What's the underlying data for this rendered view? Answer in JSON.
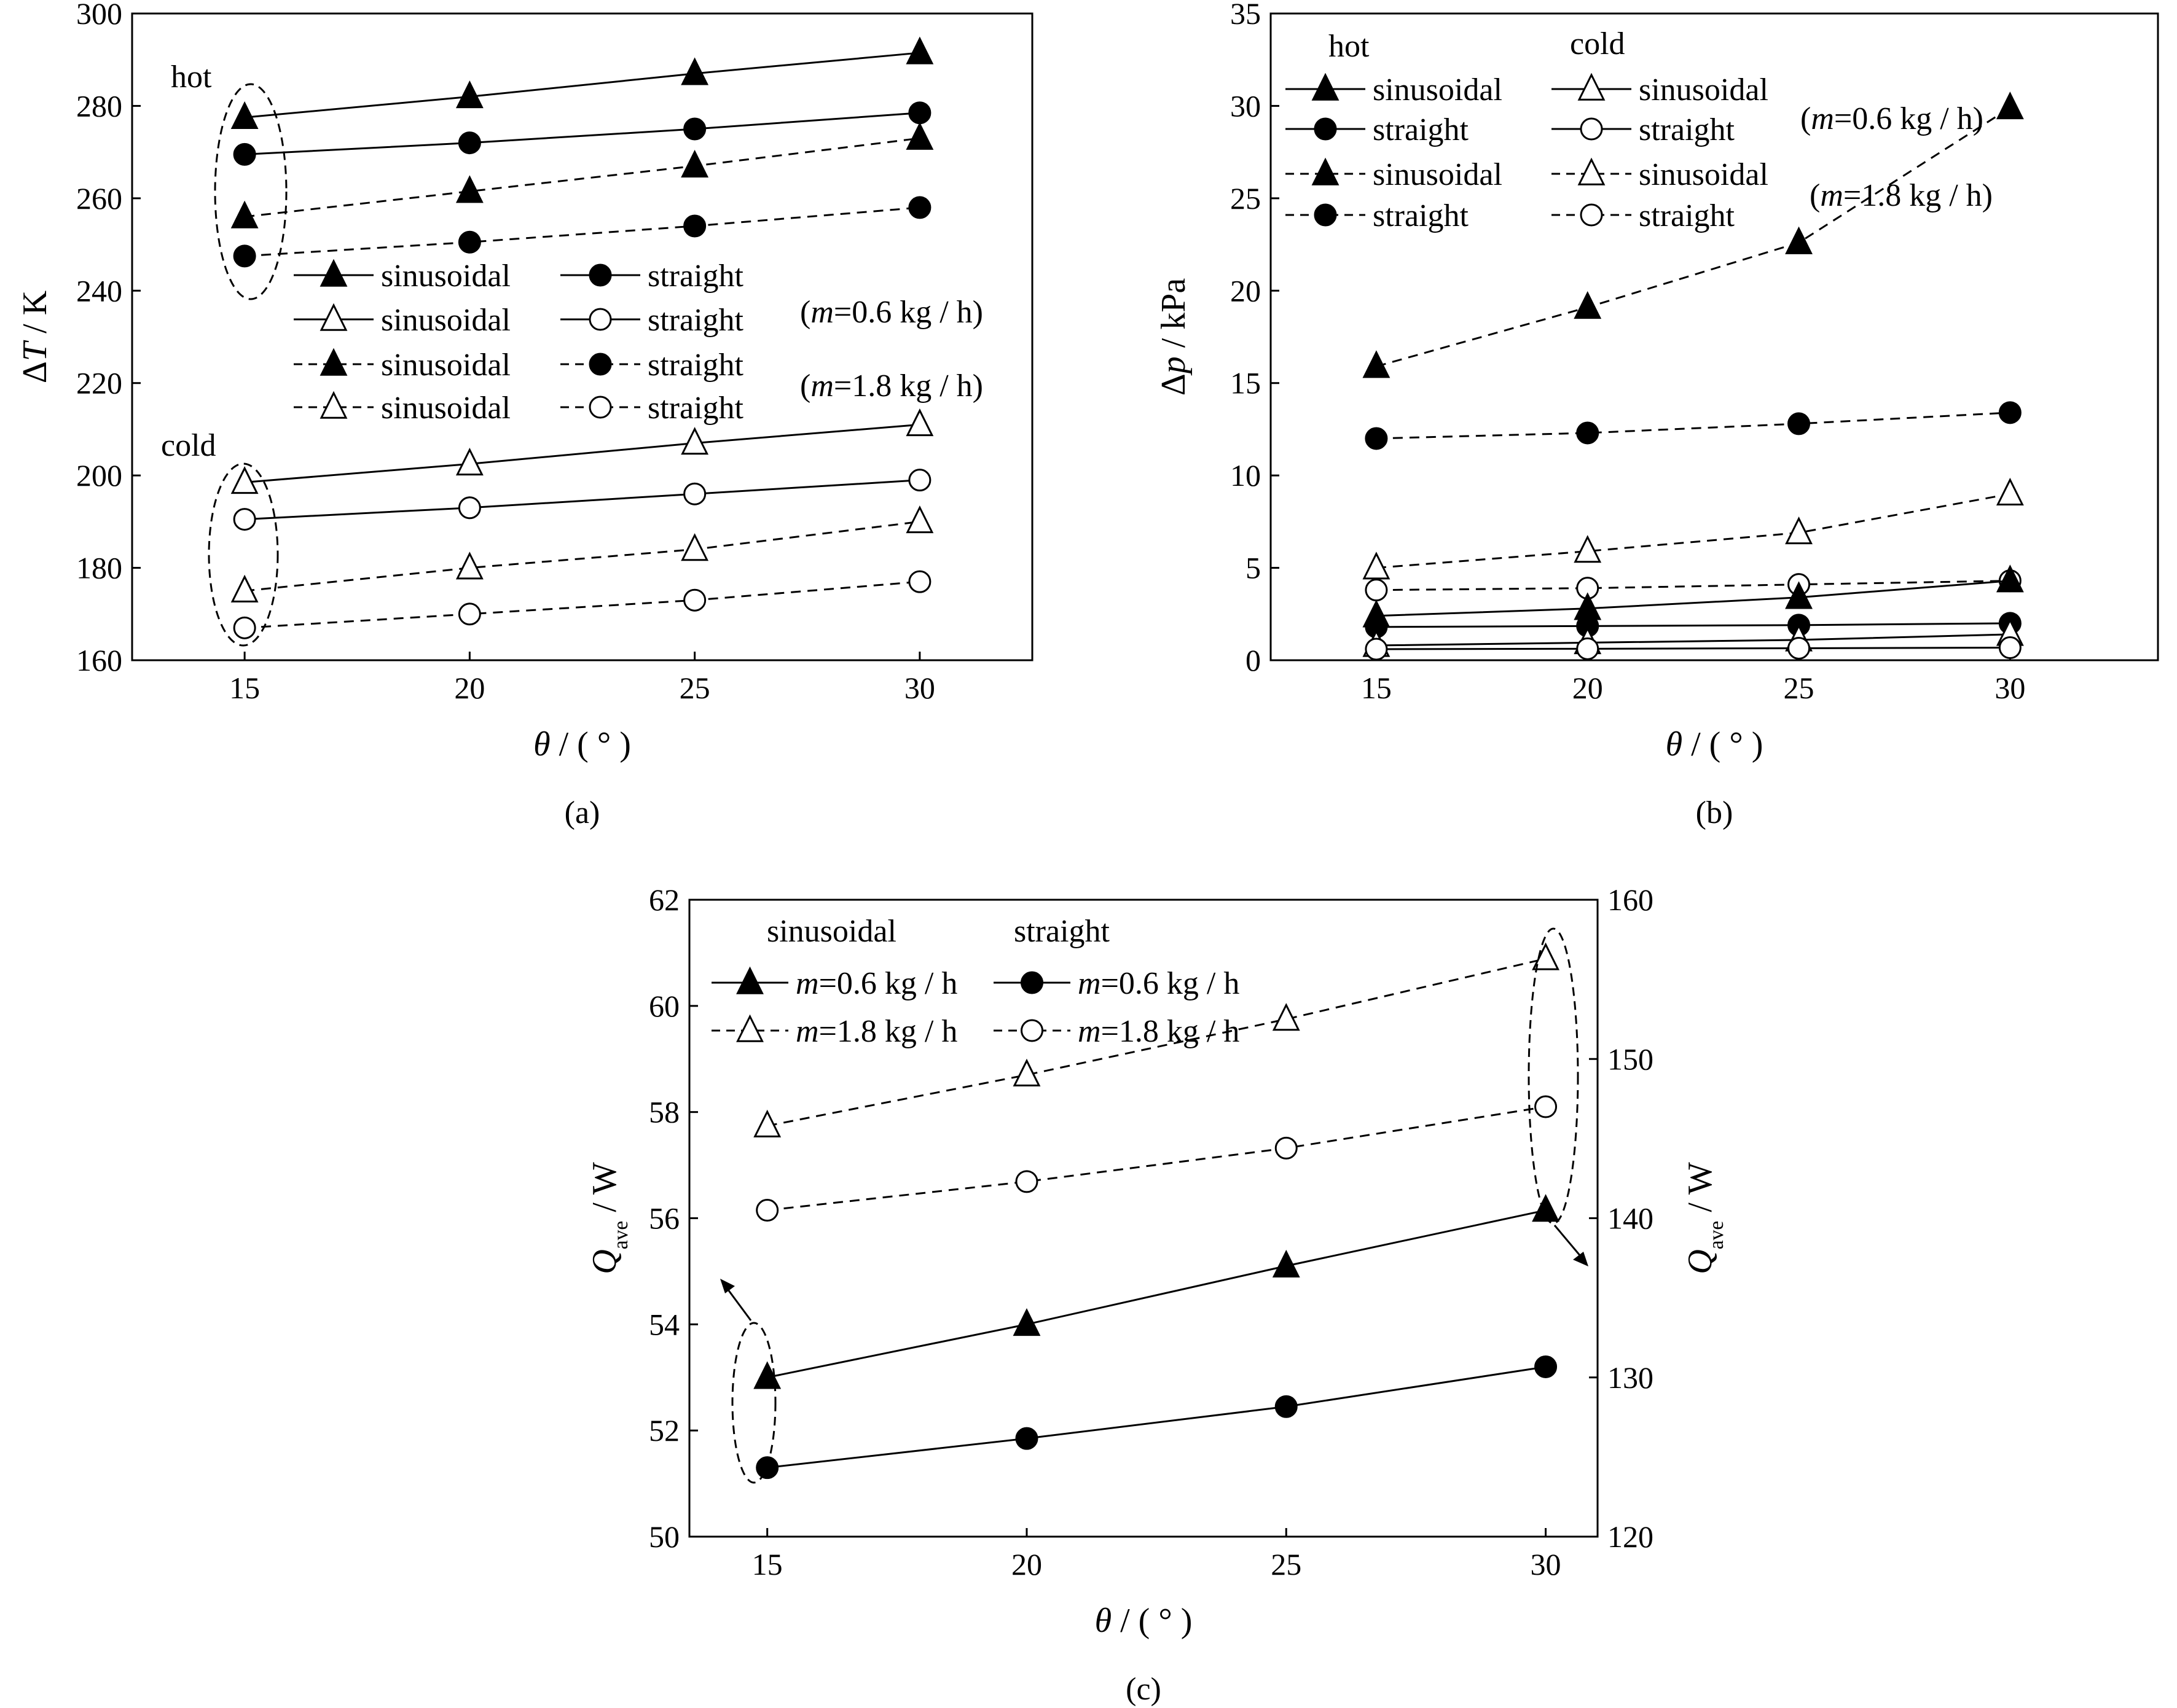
{
  "chart_data": [
    {
      "id": "a",
      "type": "line",
      "caption": "(a)",
      "ylabel": "ΔT / K",
      "xlabel": "θ / ( ° )",
      "x": [
        15,
        20,
        25,
        30
      ],
      "xticks": [
        "15",
        "20",
        "25",
        "30"
      ],
      "xlim": [
        12.5,
        32.5
      ],
      "ylim": [
        160,
        300
      ],
      "yticks": [
        "160",
        "180",
        "200",
        "220",
        "240",
        "260",
        "280",
        "300"
      ],
      "series": [
        {
          "name": "hot sinusoidal (m=0.6 kg/h)",
          "marker": "triangle",
          "filled": true,
          "dashed": false,
          "values": [
            277.5,
            282,
            287,
            291.5
          ]
        },
        {
          "name": "hot straight (m=0.6 kg/h)",
          "marker": "circle",
          "filled": true,
          "dashed": false,
          "values": [
            269.5,
            272,
            275,
            278.5
          ]
        },
        {
          "name": "hot sinusoidal (m=1.8 kg/h)",
          "marker": "triangle",
          "filled": true,
          "dashed": true,
          "values": [
            256,
            261.5,
            267,
            273
          ]
        },
        {
          "name": "hot straight (m=1.8 kg/h)",
          "marker": "circle",
          "filled": true,
          "dashed": true,
          "values": [
            247.5,
            250.5,
            254,
            258
          ]
        },
        {
          "name": "cold sinusoidal (m=0.6 kg/h)",
          "marker": "triangle",
          "filled": false,
          "dashed": false,
          "values": [
            198.5,
            202.5,
            207,
            211
          ]
        },
        {
          "name": "cold straight (m=0.6 kg/h)",
          "marker": "circle",
          "filled": false,
          "dashed": false,
          "values": [
            190.5,
            193,
            196,
            199
          ]
        },
        {
          "name": "cold sinusoidal (m=1.8 kg/h)",
          "marker": "triangle",
          "filled": false,
          "dashed": true,
          "values": [
            175,
            180,
            184,
            190
          ]
        },
        {
          "name": "cold straight (m=1.8 kg/h)",
          "marker": "circle",
          "filled": false,
          "dashed": true,
          "values": [
            167,
            170,
            173,
            177
          ]
        }
      ],
      "legend": {
        "rows": [
          [
            {
              "marker": "triangle",
              "filled": true,
              "dashed": false,
              "label": "sinusoidal"
            },
            {
              "marker": "circle",
              "filled": true,
              "dashed": false,
              "label": "straight"
            }
          ],
          [
            {
              "marker": "triangle",
              "filled": false,
              "dashed": false,
              "label": "sinusoidal"
            },
            {
              "marker": "circle",
              "filled": false,
              "dashed": false,
              "label": "straight"
            }
          ],
          [
            {
              "marker": "triangle",
              "filled": true,
              "dashed": true,
              "label": "sinusoidal"
            },
            {
              "marker": "circle",
              "filled": true,
              "dashed": true,
              "label": "straight"
            }
          ],
          [
            {
              "marker": "triangle",
              "filled": false,
              "dashed": true,
              "label": "sinusoidal"
            },
            {
              "marker": "circle",
              "filled": false,
              "dashed": true,
              "label": "straight"
            }
          ]
        ],
        "notes": [
          "(m=0.6 kg / h)",
          "(m=1.8 kg / h)"
        ],
        "group_labels": [
          "hot",
          "cold"
        ]
      }
    },
    {
      "id": "b",
      "type": "line",
      "caption": "(b)",
      "ylabel": "Δp / kPa",
      "xlabel": "θ / ( ° )",
      "x": [
        15,
        20,
        25,
        30
      ],
      "xticks": [
        "15",
        "20",
        "25",
        "30"
      ],
      "xlim": [
        12.5,
        33.5
      ],
      "ylim": [
        0,
        35
      ],
      "yticks": [
        "0",
        "5",
        "10",
        "15",
        "20",
        "25",
        "30",
        "35"
      ],
      "series": [
        {
          "name": "hot sinusoidal (m=1.8 kg/h)",
          "marker": "triangle",
          "filled": true,
          "dashed": true,
          "values": [
            15.9,
            19.1,
            22.6,
            29.9
          ]
        },
        {
          "name": "hot straight (m=1.8 kg/h)",
          "marker": "circle",
          "filled": true,
          "dashed": true,
          "values": [
            12.0,
            12.3,
            12.8,
            13.4
          ]
        },
        {
          "name": "cold sinusoidal (m=1.8 kg/h)",
          "marker": "triangle",
          "filled": false,
          "dashed": true,
          "values": [
            5.0,
            5.9,
            6.9,
            9.0
          ]
        },
        {
          "name": "cold straight (m=1.8 kg/h)",
          "marker": "circle",
          "filled": false,
          "dashed": true,
          "values": [
            3.8,
            3.9,
            4.1,
            4.3
          ]
        },
        {
          "name": "hot sinusoidal (m=0.6 kg/h)",
          "marker": "triangle",
          "filled": true,
          "dashed": false,
          "values": [
            2.4,
            2.8,
            3.4,
            4.3
          ]
        },
        {
          "name": "hot straight (m=0.6 kg/h)",
          "marker": "circle",
          "filled": true,
          "dashed": false,
          "values": [
            1.8,
            1.85,
            1.9,
            2.0
          ]
        },
        {
          "name": "cold sinusoidal (m=0.6 kg/h)",
          "marker": "triangle",
          "filled": false,
          "dashed": false,
          "values": [
            0.8,
            0.95,
            1.1,
            1.4
          ]
        },
        {
          "name": "cold straight (m=0.6 kg/h)",
          "marker": "circle",
          "filled": false,
          "dashed": false,
          "values": [
            0.6,
            0.62,
            0.65,
            0.68
          ]
        }
      ],
      "legend": {
        "headers": [
          "hot",
          "cold"
        ],
        "rows": [
          [
            {
              "marker": "triangle",
              "filled": true,
              "dashed": false,
              "label": "sinusoidal"
            },
            {
              "marker": "triangle",
              "filled": false,
              "dashed": false,
              "label": "sinusoidal"
            }
          ],
          [
            {
              "marker": "circle",
              "filled": true,
              "dashed": false,
              "label": "straight"
            },
            {
              "marker": "circle",
              "filled": false,
              "dashed": false,
              "label": "straight"
            }
          ],
          [
            {
              "marker": "triangle",
              "filled": true,
              "dashed": true,
              "label": "sinusoidal"
            },
            {
              "marker": "triangle",
              "filled": false,
              "dashed": true,
              "label": "sinusoidal"
            }
          ],
          [
            {
              "marker": "circle",
              "filled": true,
              "dashed": true,
              "label": "straight"
            },
            {
              "marker": "circle",
              "filled": false,
              "dashed": true,
              "label": "straight"
            }
          ]
        ],
        "notes": [
          "(m=0.6 kg / h)",
          "(m=1.8 kg / h)"
        ]
      }
    },
    {
      "id": "c",
      "type": "line",
      "caption": "(c)",
      "ylabel": "Qave / W",
      "ylabel_right": "Qave / W",
      "xlabel": "θ / ( ° )",
      "x": [
        15,
        20,
        25,
        30
      ],
      "xticks": [
        "15",
        "20",
        "25",
        "30"
      ],
      "xlim": [
        13.5,
        31
      ],
      "ylim": [
        50,
        62
      ],
      "yticks": [
        "50",
        "52",
        "54",
        "56",
        "58",
        "60",
        "62"
      ],
      "ylim_right": [
        120,
        160
      ],
      "yticks_right": [
        "120",
        "130",
        "140",
        "150",
        "160"
      ],
      "series": [
        {
          "name": "sinusoidal m=0.6 kg/h",
          "axis": "left",
          "marker": "triangle",
          "filled": true,
          "dashed": false,
          "values": [
            53.0,
            54.0,
            55.1,
            56.15
          ]
        },
        {
          "name": "straight m=0.6 kg/h",
          "axis": "left",
          "marker": "circle",
          "filled": true,
          "dashed": false,
          "values": [
            51.3,
            51.85,
            52.45,
            53.2
          ]
        },
        {
          "name": "sinusoidal m=1.8 kg/h",
          "axis": "right",
          "marker": "triangle",
          "filled": false,
          "dashed": true,
          "values": [
            145.8,
            149.0,
            152.5,
            156.3
          ]
        },
        {
          "name": "straight m=1.8 kg/h",
          "axis": "right",
          "marker": "circle",
          "filled": false,
          "dashed": true,
          "values": [
            140.5,
            142.3,
            144.4,
            147.0
          ]
        }
      ],
      "legend": {
        "headers": [
          "sinusoidal",
          "straight"
        ],
        "rows": [
          [
            {
              "marker": "triangle",
              "filled": true,
              "dashed": false,
              "label": "m=0.6 kg / h"
            },
            {
              "marker": "circle",
              "filled": true,
              "dashed": false,
              "label": "m=0.6 kg / h"
            }
          ],
          [
            {
              "marker": "triangle",
              "filled": false,
              "dashed": true,
              "label": "m=1.8 kg / h"
            },
            {
              "marker": "circle",
              "filled": false,
              "dashed": true,
              "label": "m=1.8 kg / h"
            }
          ]
        ]
      }
    }
  ]
}
